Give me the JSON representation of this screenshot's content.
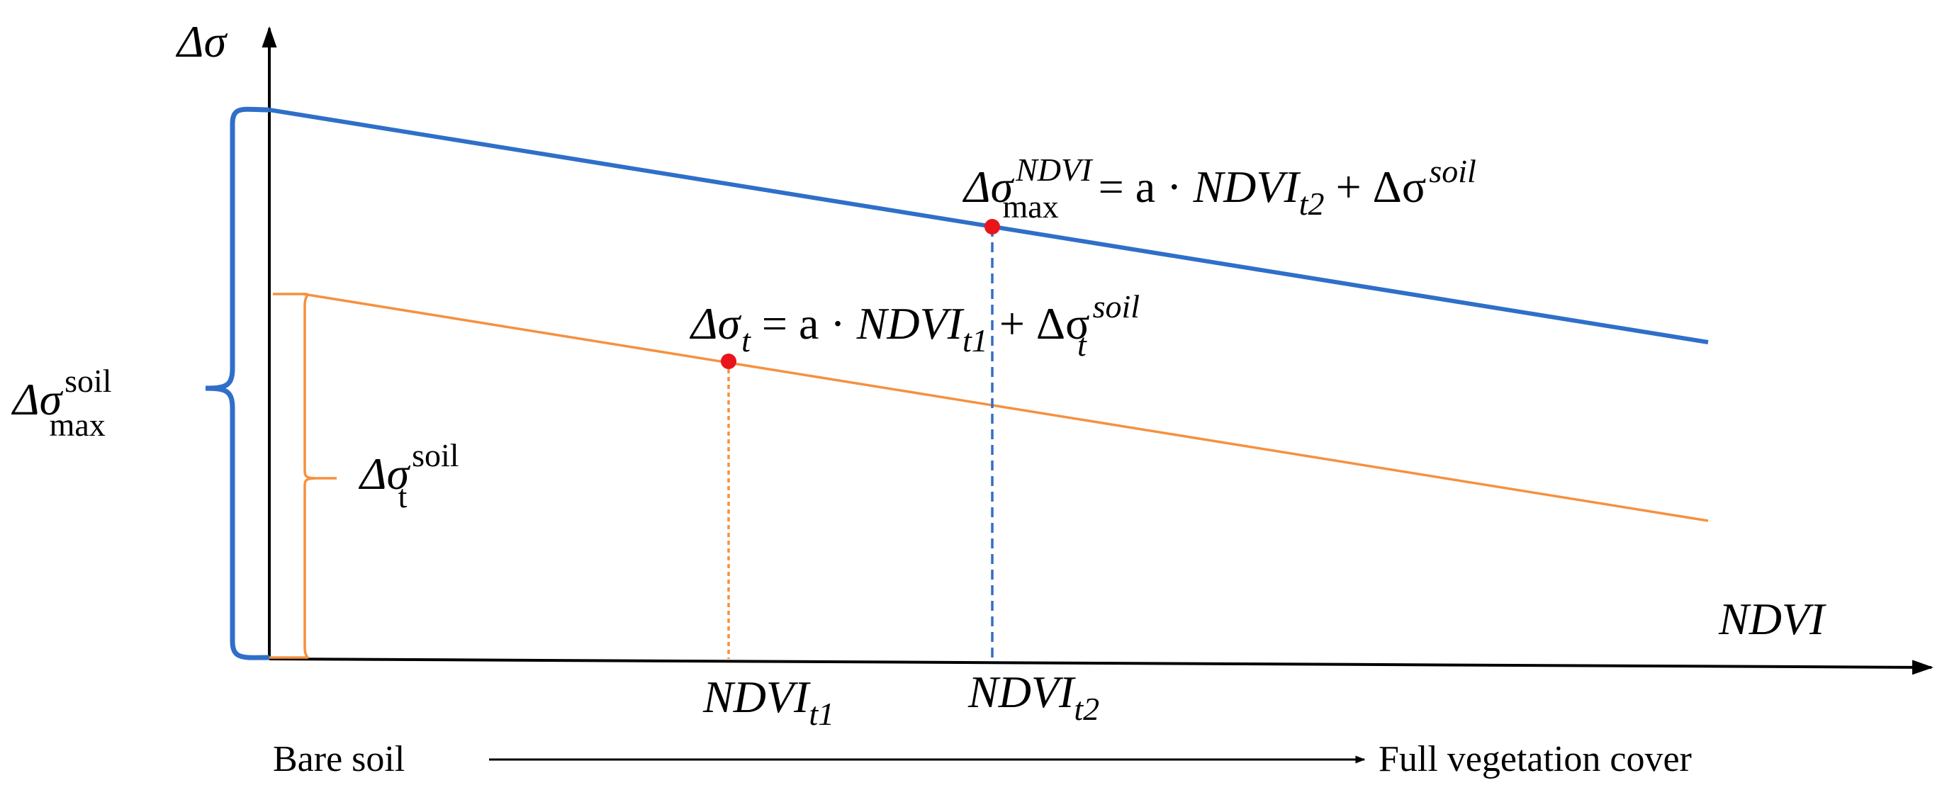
{
  "colors": {
    "max_line": "#2f6fc9",
    "t_line": "#f5913f",
    "point": "#e8151b",
    "axis": "#000000"
  },
  "axes": {
    "y_label": "Δσ",
    "x_label": "NDVI"
  },
  "lines": {
    "max": {
      "lhs_symbol": "Δσ",
      "lhs_sub": "max",
      "lhs_sup": "NDVI",
      "rhs_eq": " = a · ",
      "rhs_var": "NDVI",
      "rhs_var_sub": "t2",
      "rhs_plus": " + Δσ",
      "rhs_sup": "soil"
    },
    "t": {
      "lhs_symbol": "Δσ",
      "lhs_sub": "t",
      "rhs_eq": " = a · ",
      "rhs_var": "NDVI",
      "rhs_var_sub": "t1",
      "rhs_plus": " + Δσ",
      "rhs_sup": "soil",
      "rhs_sub": "t"
    }
  },
  "braces": {
    "max": {
      "symbol": "Δσ",
      "sup": "soil",
      "sub": "max"
    },
    "t": {
      "symbol": "Δσ",
      "sup": "soil",
      "sub": "t"
    }
  },
  "ticks": {
    "t1": {
      "var": "NDVI",
      "sub": "t1"
    },
    "t2": {
      "var": "NDVI",
      "sub": "t2"
    }
  },
  "gradient": {
    "start": "Bare soil",
    "end": "Full vegetation cover"
  }
}
